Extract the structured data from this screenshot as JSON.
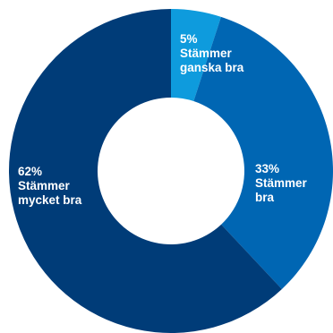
{
  "chart_data": {
    "type": "pie",
    "subtype": "donut",
    "title": "",
    "start_angle_deg": 0,
    "direction": "clockwise",
    "slices": [
      {
        "value": 5,
        "value_label": "5%",
        "label_lines": [
          "Stämmer",
          "ganska bra"
        ],
        "color": "#0E9BDD"
      },
      {
        "value": 33,
        "value_label": "33%",
        "label_lines": [
          "Stämmer",
          "bra"
        ],
        "color": "#0066B3"
      },
      {
        "value": 62,
        "value_label": "62%",
        "label_lines": [
          "Stämmer",
          "mycket bra"
        ],
        "color": "#003C78"
      }
    ],
    "legend": "none",
    "grid": false
  },
  "colors": {
    "background": "#FFFFFF",
    "label_text": "#FFFFFF"
  }
}
